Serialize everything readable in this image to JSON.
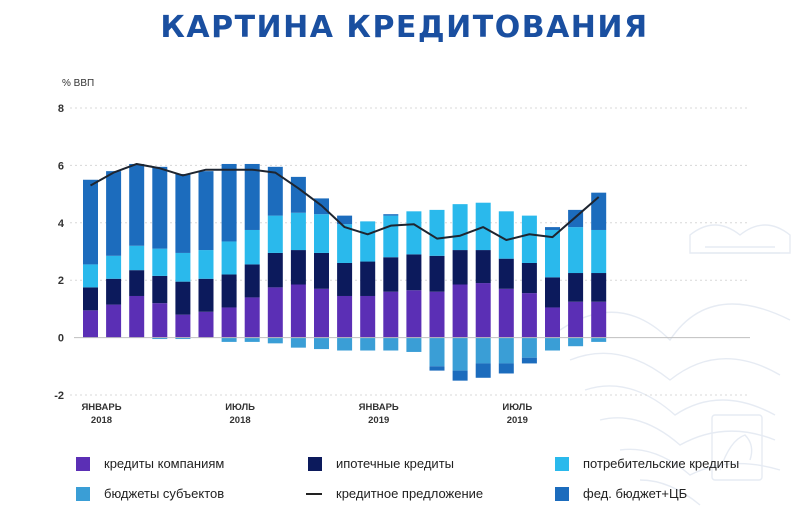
{
  "title": "КАРТИНА КРЕДИТОВАНИЯ",
  "chart_data": {
    "type": "bar",
    "stacked": true,
    "ylabel": "% ВВП",
    "ylim": [
      -2,
      8
    ],
    "yticks": [
      "8",
      "6",
      "4",
      "2",
      "0",
      "-2"
    ],
    "ytick_values": [
      8,
      6,
      4,
      2,
      0,
      -2
    ],
    "x_tick_labels": [
      {
        "index": 0,
        "month": "ЯНВАРЬ",
        "year": "2018"
      },
      {
        "index": 6,
        "month": "ИЮЛЬ",
        "year": "2018"
      },
      {
        "index": 12,
        "month": "ЯНВАРЬ",
        "year": "2019"
      },
      {
        "index": 18,
        "month": "ИЮЛЬ",
        "year": "2019"
      }
    ],
    "n_periods": 23,
    "series": [
      {
        "name": "кредиты компаниям",
        "color": "#5b2fb5",
        "values": [
          0.95,
          1.15,
          1.45,
          1.2,
          0.8,
          0.9,
          1.05,
          1.4,
          1.75,
          1.85,
          1.7,
          1.45,
          1.45,
          1.6,
          1.65,
          1.6,
          1.85,
          1.9,
          1.7,
          1.55,
          1.05,
          1.25,
          1.25
        ]
      },
      {
        "name": "ипотечные кредиты",
        "color": "#0c1a5c",
        "values": [
          0.8,
          0.9,
          0.9,
          0.95,
          1.15,
          1.15,
          1.15,
          1.15,
          1.2,
          1.2,
          1.25,
          1.15,
          1.2,
          1.2,
          1.25,
          1.25,
          1.2,
          1.15,
          1.05,
          1.05,
          1.05,
          1.0,
          1.0
        ]
      },
      {
        "name": "потребительские кредиты",
        "color": "#2ab9ec",
        "values": [
          0.8,
          0.8,
          0.85,
          0.95,
          1.0,
          1.0,
          1.15,
          1.2,
          1.3,
          1.3,
          1.35,
          1.35,
          1.4,
          1.45,
          1.5,
          1.6,
          1.6,
          1.65,
          1.65,
          1.65,
          1.65,
          1.6,
          1.5
        ]
      },
      {
        "name": "бюджеты субъектов",
        "color": "#3a9ed6",
        "values": [
          0.0,
          0.0,
          0.0,
          -0.05,
          -0.05,
          0.0,
          -0.15,
          -0.15,
          -0.2,
          -0.35,
          -0.4,
          -0.45,
          -0.45,
          -0.45,
          -0.5,
          -1.0,
          -1.15,
          -0.9,
          -0.9,
          -0.7,
          -0.45,
          -0.3,
          -0.15
        ]
      },
      {
        "name": "фед. бюджет+ЦБ",
        "color": "#1c6cbd",
        "values": [
          2.95,
          2.95,
          2.85,
          2.85,
          2.75,
          2.75,
          2.7,
          2.3,
          1.7,
          1.25,
          0.55,
          0.3,
          0.0,
          0.05,
          0.0,
          -0.15,
          -0.35,
          -0.5,
          -0.35,
          -0.2,
          0.1,
          0.6,
          1.3
        ]
      }
    ],
    "line": {
      "name": "кредитное предложение",
      "color": "#1e2530",
      "values": [
        5.3,
        5.75,
        6.05,
        5.9,
        5.65,
        5.85,
        5.85,
        5.85,
        5.75,
        5.2,
        4.6,
        3.85,
        3.6,
        3.9,
        3.95,
        3.45,
        3.55,
        3.85,
        3.4,
        3.6,
        3.5,
        4.2,
        4.9
      ]
    }
  }
}
